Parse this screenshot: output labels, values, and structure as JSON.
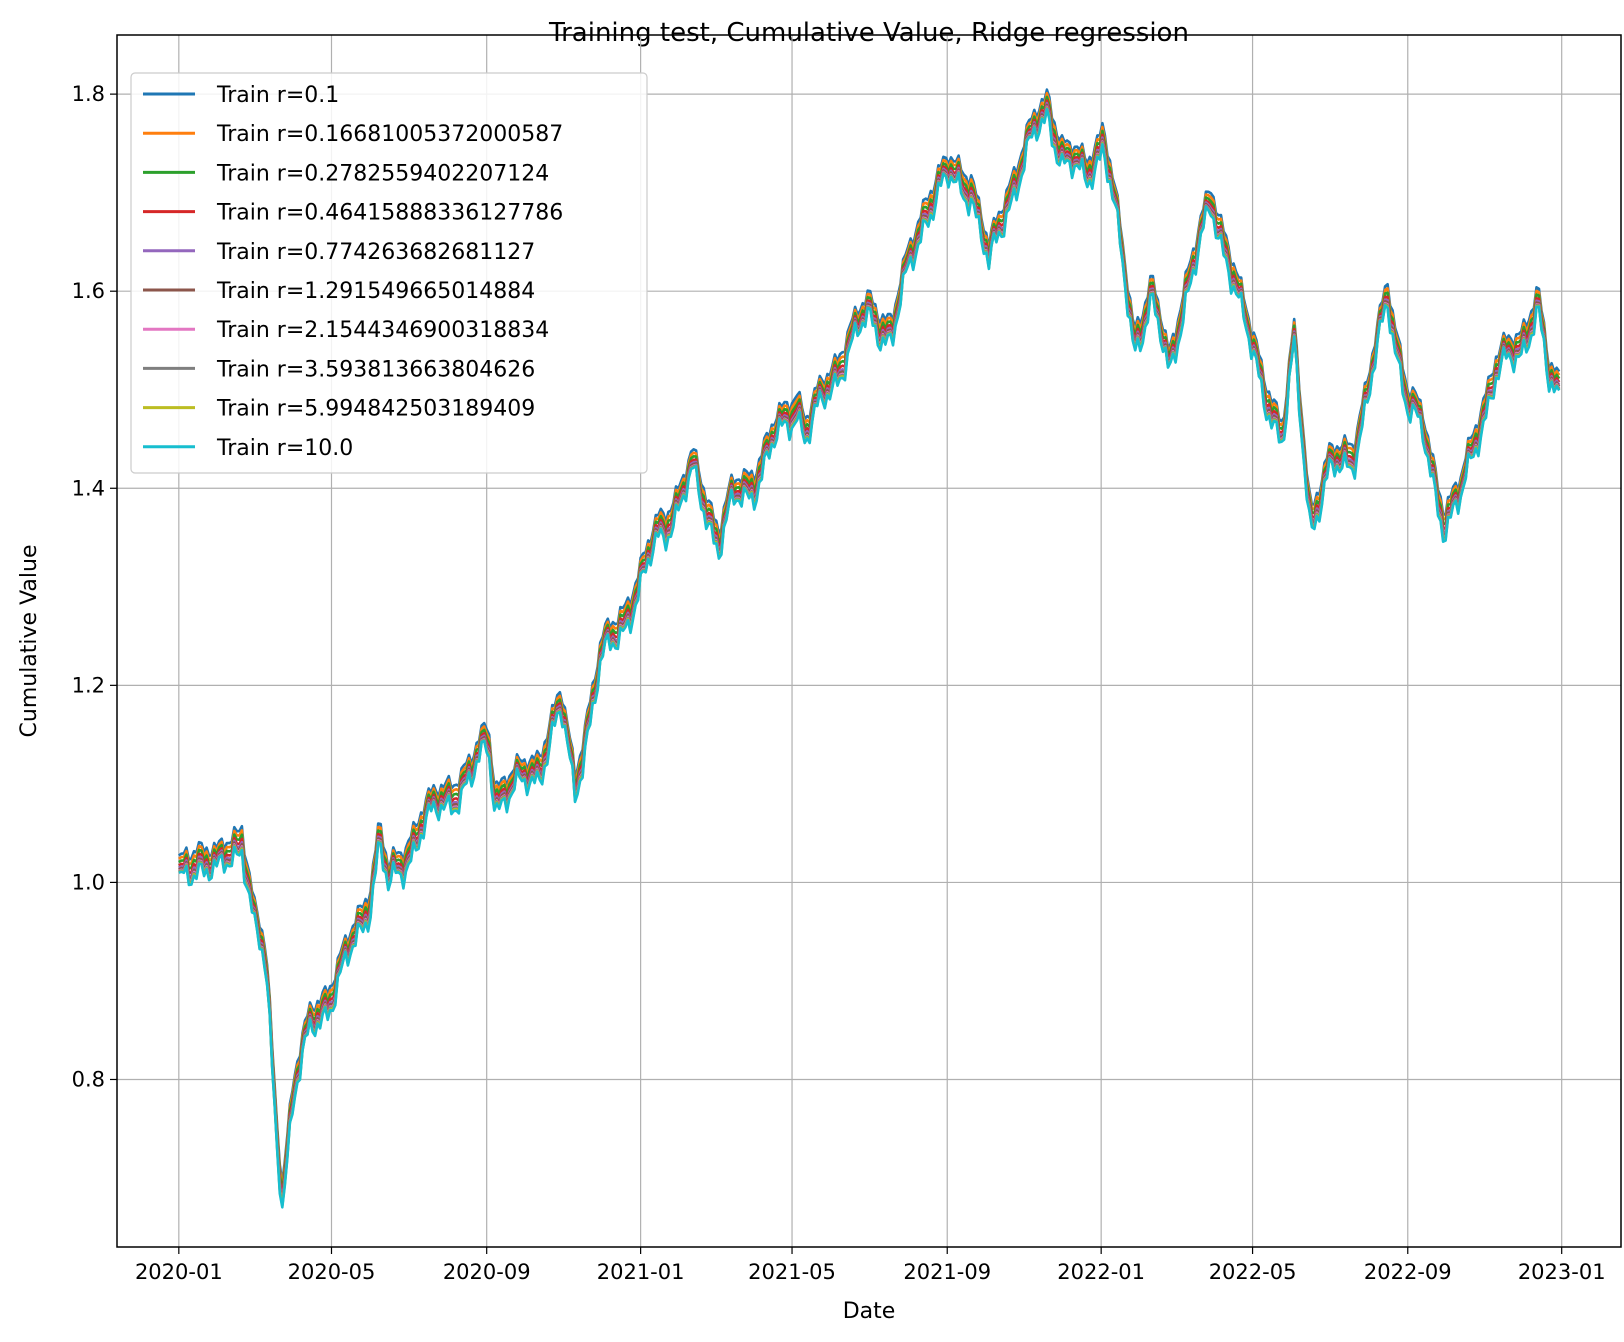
{
  "chart_data": {
    "type": "line",
    "title": "Training test, Cumulative Value, Ridge regression",
    "xlabel": "Date",
    "ylabel": "Cumulative Value",
    "xlim": [
      "2019-11-13",
      "2023-02-17"
    ],
    "ylim": [
      0.63,
      1.86
    ],
    "x_ticks": [
      "2020-01",
      "2020-05",
      "2020-09",
      "2021-01",
      "2021-05",
      "2021-09",
      "2022-01",
      "2022-05",
      "2022-09",
      "2023-01"
    ],
    "y_ticks": [
      "0.8",
      "1.0",
      "1.2",
      "1.4",
      "1.6",
      "1.8"
    ],
    "grid": true,
    "legend_position": "top-left",
    "base_series": {
      "x": [
        "2020-01-01",
        "2020-01-15",
        "2020-02-01",
        "2020-02-20",
        "2020-03-01",
        "2020-03-10",
        "2020-03-18",
        "2020-03-23",
        "2020-04-01",
        "2020-04-15",
        "2020-05-01",
        "2020-05-15",
        "2020-06-01",
        "2020-06-08",
        "2020-06-15",
        "2020-06-26",
        "2020-07-10",
        "2020-08-01",
        "2020-08-20",
        "2020-09-02",
        "2020-09-08",
        "2020-09-24",
        "2020-10-12",
        "2020-10-30",
        "2020-11-10",
        "2020-12-01",
        "2020-12-31",
        "2021-01-15",
        "2021-01-28",
        "2021-02-12",
        "2021-03-04",
        "2021-03-15",
        "2021-04-01",
        "2021-04-16",
        "2021-05-05",
        "2021-05-12",
        "2021-06-01",
        "2021-06-15",
        "2021-07-01",
        "2021-07-19",
        "2021-08-02",
        "2021-08-16",
        "2021-09-02",
        "2021-09-20",
        "2021-10-04",
        "2021-10-20",
        "2021-11-08",
        "2021-11-20",
        "2021-12-01",
        "2021-12-20",
        "2022-01-03",
        "2022-01-15",
        "2022-01-27",
        "2022-02-10",
        "2022-02-24",
        "2022-03-08",
        "2022-03-29",
        "2022-04-12",
        "2022-04-29",
        "2022-05-12",
        "2022-05-25",
        "2022-06-03",
        "2022-06-16",
        "2022-07-01",
        "2022-07-20",
        "2022-08-01",
        "2022-08-16",
        "2022-09-01",
        "2022-09-13",
        "2022-09-30",
        "2022-10-12",
        "2022-10-28",
        "2022-11-10",
        "2022-11-30",
        "2022-12-13",
        "2022-12-22",
        "2022-12-30"
      ],
      "y": [
        1.005,
        1.03,
        1.015,
        1.05,
        0.96,
        0.92,
        0.76,
        0.69,
        0.79,
        0.86,
        0.89,
        0.93,
        0.99,
        1.05,
        1.0,
        1.02,
        1.06,
        1.09,
        1.11,
        1.15,
        1.09,
        1.1,
        1.12,
        1.18,
        1.1,
        1.23,
        1.3,
        1.36,
        1.38,
        1.42,
        1.35,
        1.39,
        1.41,
        1.45,
        1.49,
        1.46,
        1.51,
        1.55,
        1.58,
        1.56,
        1.63,
        1.69,
        1.72,
        1.71,
        1.63,
        1.7,
        1.76,
        1.79,
        1.74,
        1.72,
        1.76,
        1.66,
        1.55,
        1.6,
        1.52,
        1.6,
        1.69,
        1.64,
        1.55,
        1.5,
        1.45,
        1.55,
        1.37,
        1.42,
        1.44,
        1.5,
        1.6,
        1.49,
        1.46,
        1.37,
        1.39,
        1.47,
        1.52,
        1.55,
        1.59,
        1.51,
        1.5
      ]
    },
    "series": [
      {
        "name": "Train r=0.1",
        "color": "#1f77b4",
        "y_offset": 0.012,
        "noise_scale": 0.3
      },
      {
        "name": "Train r=0.16681005372000587",
        "color": "#ff7f0e",
        "y_offset": 0.008,
        "noise_scale": 0.4
      },
      {
        "name": "Train r=0.2782559402207124",
        "color": "#2ca02c",
        "y_offset": 0.004,
        "noise_scale": 0.5
      },
      {
        "name": "Train r=0.46415888336127786",
        "color": "#d62728",
        "y_offset": 0.0,
        "noise_scale": 0.6
      },
      {
        "name": "Train r=0.774263682681127",
        "color": "#9467bd",
        "y_offset": -0.003,
        "noise_scale": 0.7
      },
      {
        "name": "Train r=1.291549665014884",
        "color": "#8c564b",
        "y_offset": -0.005,
        "noise_scale": 0.75
      },
      {
        "name": "Train r=2.1544346900318834",
        "color": "#e377c2",
        "y_offset": -0.007,
        "noise_scale": 0.8
      },
      {
        "name": "Train r=3.593813663804626",
        "color": "#7f7f7f",
        "y_offset": -0.008,
        "noise_scale": 0.85
      },
      {
        "name": "Train r=5.994842503189409",
        "color": "#bcbd22",
        "y_offset": -0.009,
        "noise_scale": 0.9
      },
      {
        "name": "Train r=10.0",
        "color": "#17becf",
        "y_offset": -0.01,
        "noise_scale": 1.0
      }
    ]
  }
}
